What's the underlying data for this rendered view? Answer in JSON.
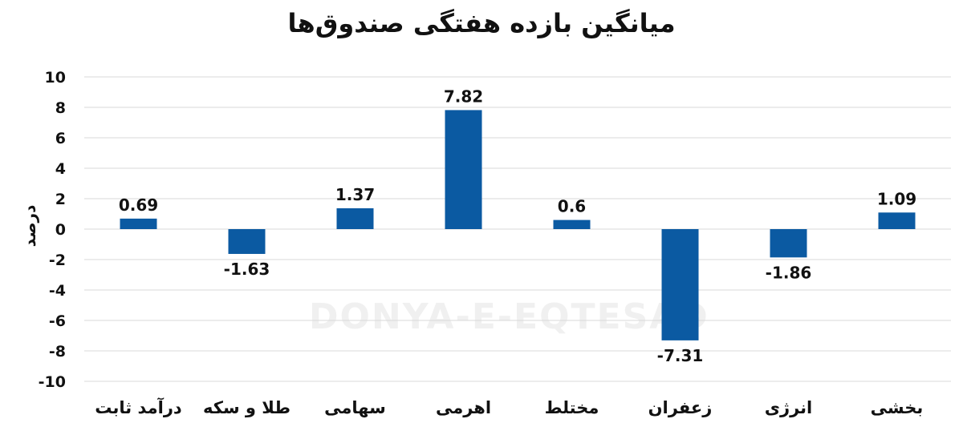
{
  "chart_data": {
    "type": "bar",
    "title": "میانگین بازده هفتگی صندوق‌ها",
    "ylabel": "درصد",
    "xlabel": "",
    "categories": [
      "بخشی",
      "انرژی",
      "زعفران",
      "مختلط",
      "اهرمی",
      "سهامی",
      "طلا و سکه",
      "درآمد ثابت"
    ],
    "values": [
      1.09,
      -1.86,
      -7.31,
      0.6,
      7.82,
      1.37,
      -1.63,
      0.69
    ],
    "data_labels": [
      "1.09",
      "-1.86",
      "-7.31",
      "0.6",
      "7.82",
      "1.37",
      "-1.63",
      "0.69"
    ],
    "ylim": [
      -10,
      10
    ],
    "yticks": [
      10,
      8,
      6,
      4,
      2,
      0,
      -2,
      -4,
      -6,
      -8,
      -10
    ],
    "ytick_labels": [
      "10",
      "8",
      "6",
      "4",
      "2",
      "0",
      "-2",
      "-4",
      "-6",
      "-8",
      "-10"
    ],
    "grid": true,
    "bar_color": "#0b5aa2",
    "watermark": "DONYA-E-EQTESAD"
  }
}
